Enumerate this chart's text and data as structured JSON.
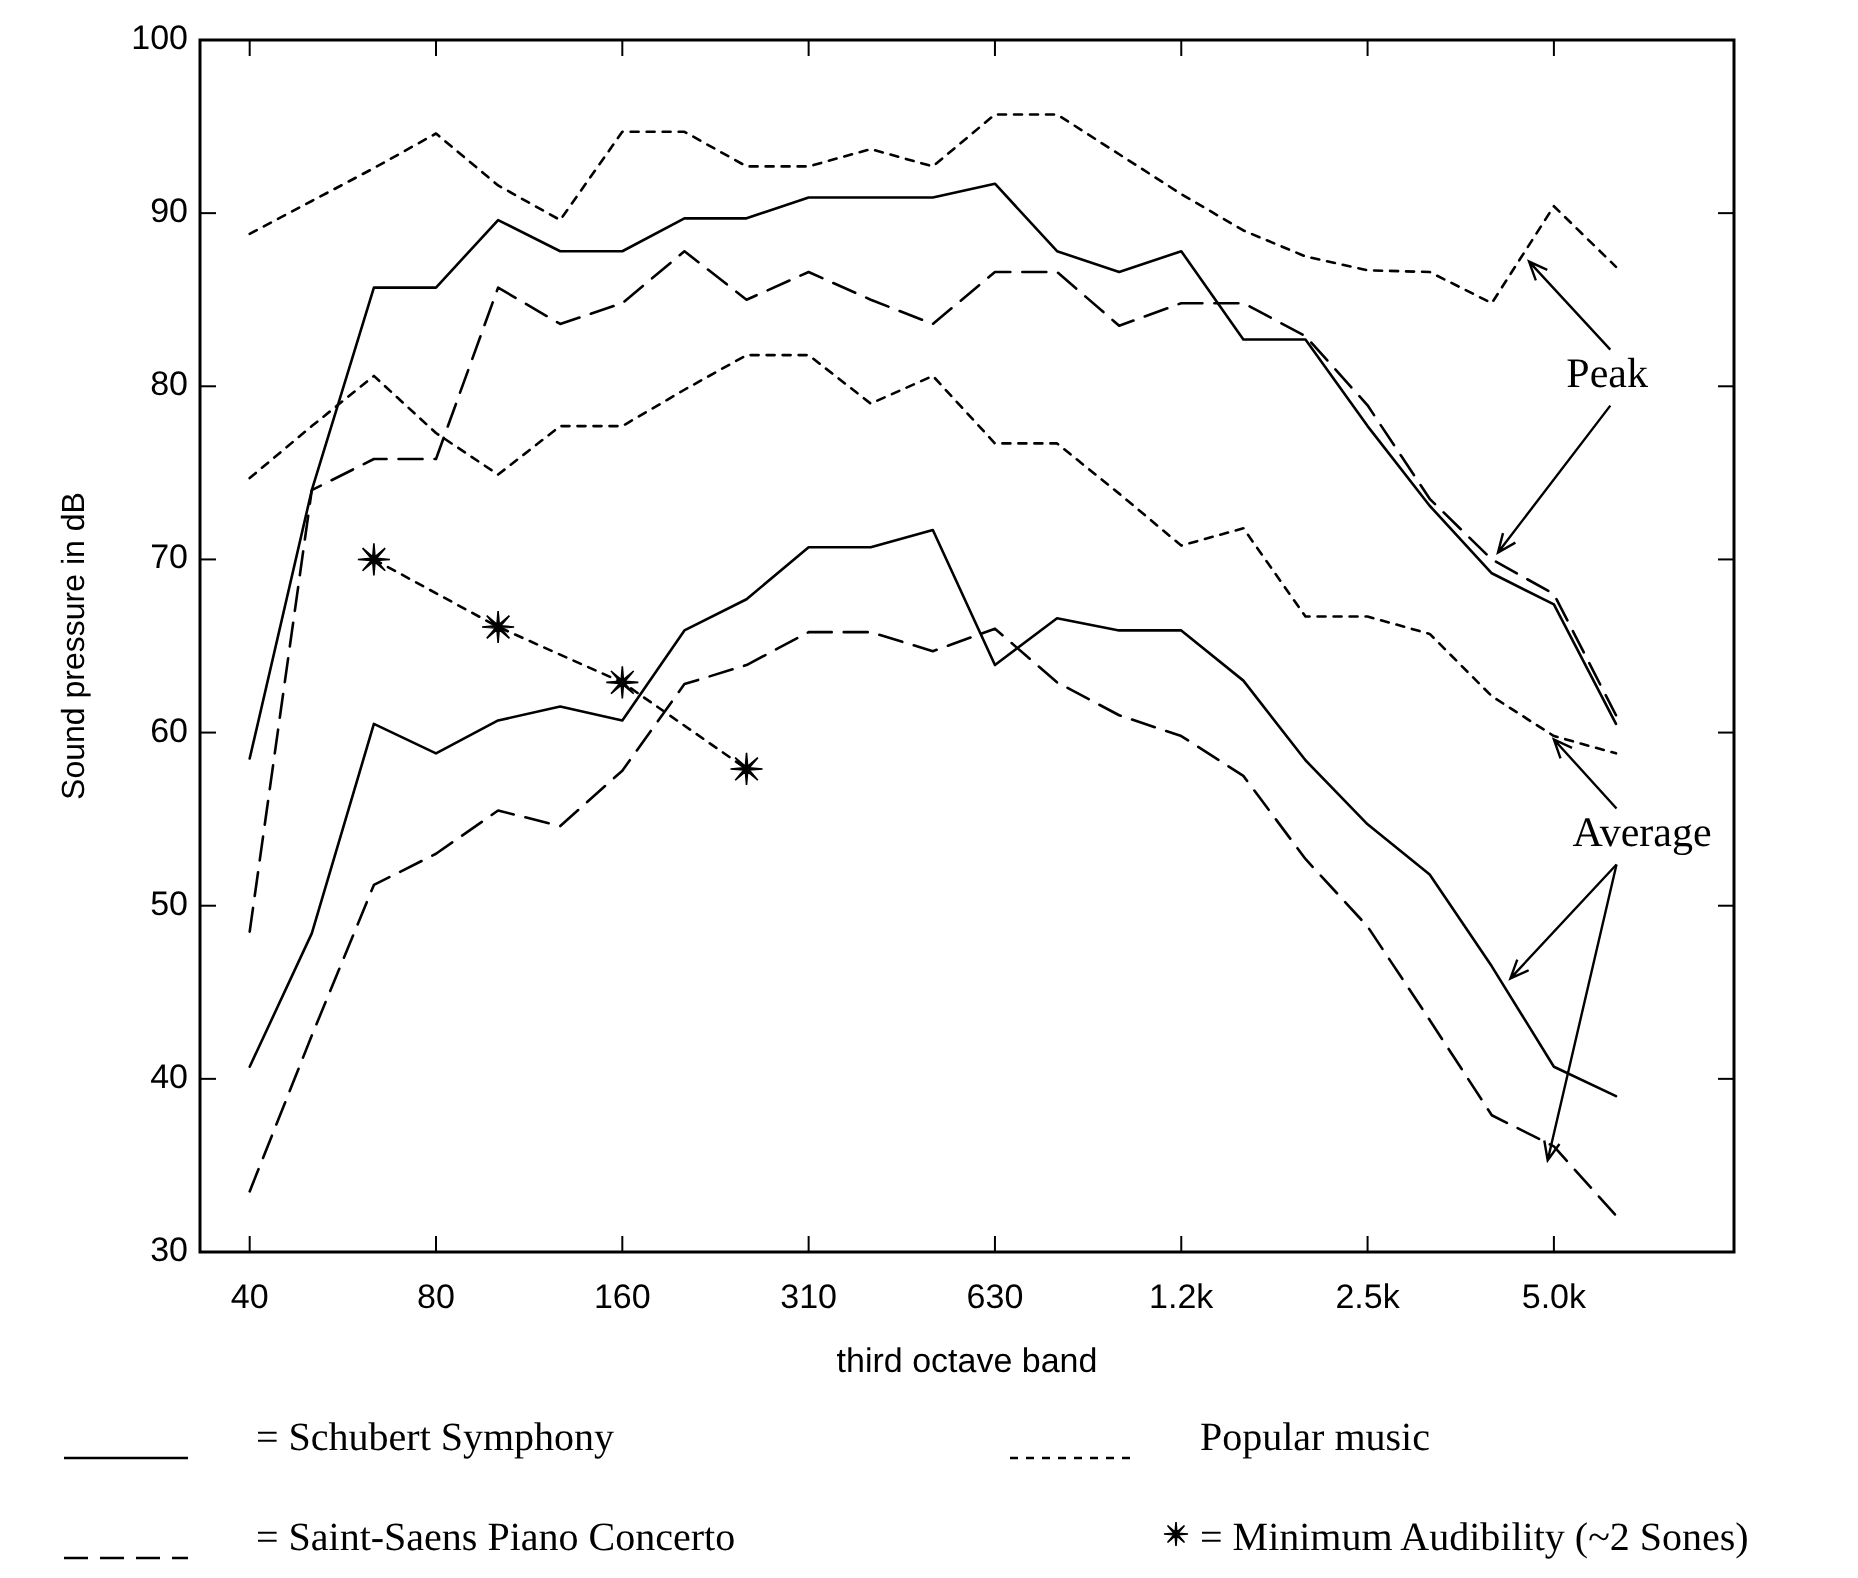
{
  "chart_data": {
    "type": "line",
    "xlabel": "third octave band",
    "ylabel": "Sound pressure in dB",
    "categories": [
      "40",
      null,
      null,
      "80",
      null,
      null,
      "160",
      null,
      null,
      "310",
      null,
      null,
      "630",
      null,
      null,
      "1.2k",
      null,
      null,
      "2.5k",
      null,
      null,
      "5.0k",
      null
    ],
    "ylim": [
      30,
      100
    ],
    "yticks": [
      30,
      40,
      50,
      60,
      70,
      80,
      90,
      100
    ],
    "grid": false,
    "legend": "bottom",
    "marker": "none",
    "series": [
      {
        "name": "= Schubert Symphony",
        "color": "#000000",
        "line_style": "solid",
        "values": [
          58.5,
          74,
          85.7,
          85.7,
          89.6,
          87.8,
          87.8,
          89.7,
          89.7,
          90.9,
          90.9,
          90.9,
          91.7,
          87.8,
          86.6,
          87.8,
          82.7,
          82.7,
          77.7,
          73.1,
          69.2,
          67.4,
          60.5
        ]
      },
      {
        "color": "#000000",
        "line_style": "solid",
        "values": [
          40.7,
          48.4,
          60.5,
          58.8,
          60.7,
          61.5,
          60.7,
          65.9,
          67.7,
          70.7,
          70.7,
          71.7,
          63.9,
          66.6,
          65.9,
          65.9,
          63,
          58.4,
          54.7,
          51.8,
          46.5,
          40.7,
          39
        ]
      },
      {
        "name": "= Saint-Saens Piano Concerto",
        "color": "#000000",
        "line_style": "dashed",
        "values": [
          48.5,
          74,
          75.8,
          75.8,
          85.7,
          83.6,
          84.8,
          87.8,
          85,
          86.6,
          85,
          83.6,
          86.6,
          86.6,
          83.5,
          84.8,
          84.8,
          82.9,
          78.9,
          73.5,
          70,
          68,
          61
        ]
      },
      {
        "color": "#000000",
        "line_style": "dashed",
        "values": [
          33.5,
          42.5,
          51.2,
          53,
          55.5,
          54.6,
          57.8,
          62.8,
          63.9,
          65.8,
          65.8,
          64.7,
          66,
          62.9,
          61,
          59.8,
          57.5,
          52.7,
          48.8,
          43.4,
          37.9,
          36.1,
          32.1
        ]
      },
      {
        "name": "Popular music",
        "color": "#000000",
        "line_style": "dotted",
        "values": [
          88.8,
          90.7,
          92.6,
          94.6,
          91.6,
          89.6,
          94.7,
          94.7,
          92.7,
          92.7,
          93.7,
          92.7,
          95.7,
          95.7,
          93.4,
          91.1,
          89,
          87.5,
          86.7,
          86.6,
          84.8,
          90.4,
          86.9
        ]
      },
      {
        "color": "#000000",
        "line_style": "dotted",
        "values": [
          74.7,
          77.7,
          80.6,
          77.3,
          74.9,
          77.7,
          77.7,
          79.8,
          81.8,
          81.8,
          79,
          80.6,
          76.7,
          76.7,
          73.8,
          70.8,
          71.8,
          66.7,
          66.7,
          65.7,
          62.1,
          59.8,
          58.8
        ]
      },
      {
        "name": "= Minimum Audibility (~2 Sones)",
        "color": "#000000",
        "line_style": "dotted",
        "marker": "star",
        "values": [
          null,
          null,
          70,
          null,
          66.1,
          null,
          62.9,
          null,
          57.9,
          null,
          null,
          null,
          null,
          null,
          null,
          null,
          null,
          null,
          null,
          null,
          null,
          null,
          null
        ]
      }
    ],
    "annotations": [
      {
        "text": "Peak",
        "y": 87.2
      },
      "Average"
    ]
  }
}
